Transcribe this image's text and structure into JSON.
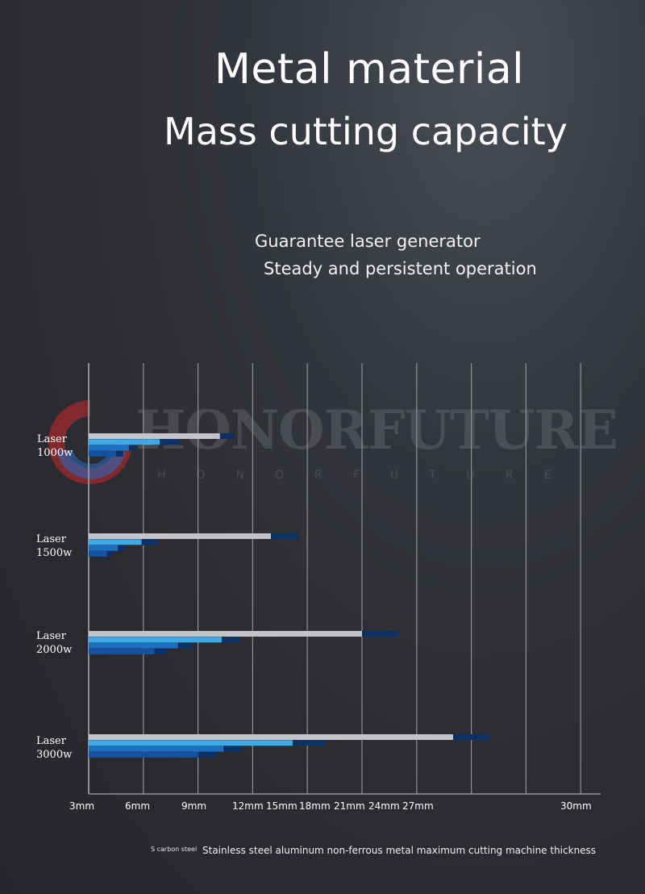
{
  "header": {
    "title_line1": "Metal material",
    "title_line2": "Mass cutting capacity",
    "subtitle_line1": "Guarantee laser generator",
    "subtitle_line2": "Steady and persistent operation"
  },
  "watermark": {
    "brand": "HONORFUTURE",
    "sub": "HONORFUTURE"
  },
  "colors": {
    "background": "#2b2c31",
    "grid": "#8e9096",
    "carbon_steel": "#c3c4c8",
    "stainless_steel": "#3fa9e6",
    "aluminum": "#1d6fc0",
    "nonferrous": "#1452a0",
    "extension": "#0b3166"
  },
  "chart_data": {
    "type": "bar",
    "orientation": "horizontal",
    "x_tick_labels": [
      "3mm",
      "6mm",
      "9mm",
      "12mm",
      "15mm",
      "18mm",
      "21mm",
      "24mm",
      "27mm",
      "30mm"
    ],
    "x_unit": "mm",
    "xlim": [
      3,
      30
    ],
    "categories": [
      {
        "line1": "Laser",
        "line2": "1000w"
      },
      {
        "line1": "Laser",
        "line2": "1500w"
      },
      {
        "line1": "Laser",
        "line2": "2000w"
      },
      {
        "line1": "Laser",
        "line2": "3000w"
      }
    ],
    "series": [
      {
        "name": "S carbon steel",
        "key": "carbon_steel",
        "values": [
          10.2,
          13.0,
          18.0,
          23.0
        ],
        "ext_values": [
          11.0,
          14.5,
          20.0,
          25.0
        ]
      },
      {
        "name": "Stainless steel",
        "key": "stainless_steel",
        "values": [
          6.9,
          5.9,
          10.3,
          14.2
        ],
        "ext_values": [
          8.0,
          6.8,
          11.3,
          16.0
        ]
      },
      {
        "name": "aluminum",
        "key": "aluminum",
        "values": [
          5.2,
          4.6,
          7.9,
          10.4
        ],
        "ext_values": [
          5.6,
          5.0,
          8.7,
          11.4
        ]
      },
      {
        "name": "non-ferrous metal",
        "key": "nonferrous",
        "values": [
          4.5,
          4.0,
          6.6,
          9.0
        ],
        "ext_values": [
          4.9,
          4.3,
          7.3,
          10.0
        ]
      }
    ],
    "legend_small": "S carbon steel",
    "xlabel": "Stainless steel aluminum non-ferrous metal maximum cutting machine thickness"
  }
}
